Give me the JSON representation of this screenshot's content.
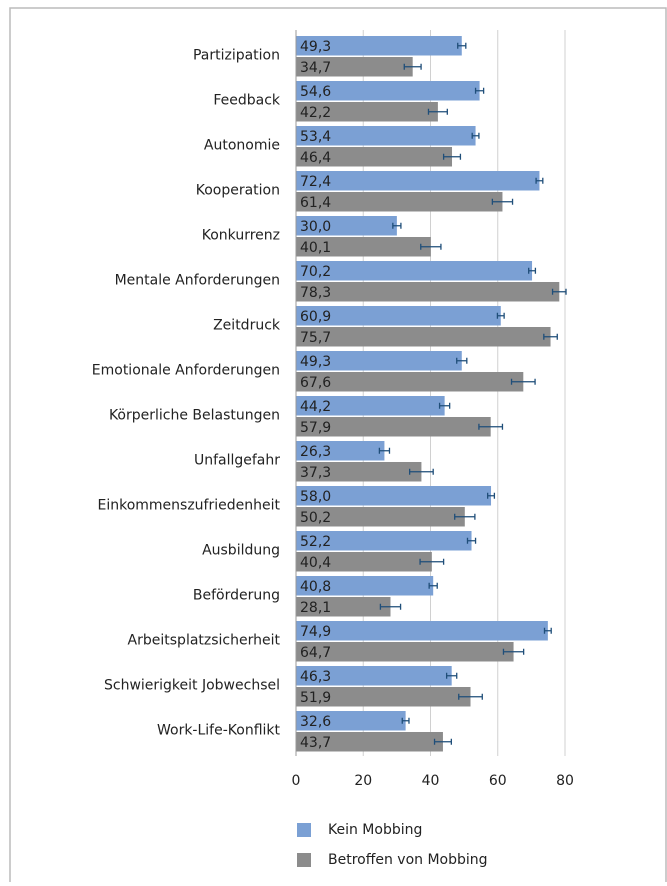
{
  "chart_data": {
    "type": "bar",
    "orientation": "horizontal",
    "categories": [
      "Partizipation",
      "Feedback",
      "Autonomie",
      "Kooperation",
      "Konkurrenz",
      "Mentale Anforderungen",
      "Zeitdruck",
      "Emotionale Anforderungen",
      "Körperliche Belastungen",
      "Unfallgefahr",
      "Einkommenszufriedenheit",
      "Ausbildung",
      "Beförderung",
      "Arbeitsplatzsicherheit",
      "Schwierigkeit Jobwechsel",
      "Work-Life-Konflikt"
    ],
    "series": [
      {
        "name": "Kein Mobbing",
        "color": "#7ba0d4",
        "values": [
          49.3,
          54.6,
          53.4,
          72.4,
          30.0,
          70.2,
          60.9,
          49.3,
          44.2,
          26.3,
          58.0,
          52.2,
          40.8,
          74.9,
          46.3,
          32.6
        ],
        "value_labels": [
          "49,3",
          "54,6",
          "53,4",
          "72,4",
          "30,0",
          "70,2",
          "60,9",
          "49,3",
          "44,2",
          "26,3",
          "58,0",
          "52,2",
          "40,8",
          "74,9",
          "46,3",
          "32,6"
        ],
        "errors": [
          1.2,
          1.2,
          1,
          1,
          1.2,
          1,
          1,
          1.5,
          1.5,
          1.5,
          1,
          1.2,
          1.2,
          1,
          1.5,
          1
        ]
      },
      {
        "name": "Betroffen von Mobbing",
        "color": "#8c8c8c",
        "values": [
          34.7,
          42.2,
          46.4,
          61.4,
          40.1,
          78.3,
          75.7,
          67.6,
          57.9,
          37.3,
          50.2,
          40.4,
          28.1,
          64.7,
          51.9,
          43.7
        ],
        "value_labels": [
          "34,7",
          "42,2",
          "46,4",
          "61,4",
          "40,1",
          "78,3",
          "75,7",
          "67,6",
          "57,9",
          "37,3",
          "50,2",
          "40,4",
          "28,1",
          "64,7",
          "51,9",
          "43,7"
        ],
        "errors": [
          2.5,
          2.8,
          2.5,
          3,
          3,
          2,
          2,
          3.5,
          3.5,
          3.5,
          3,
          3.5,
          3,
          3,
          3.5,
          2.5
        ]
      }
    ],
    "xlim": [
      0,
      80
    ],
    "xticks": [
      0,
      20,
      40,
      60,
      80
    ],
    "grid": true,
    "legend": "bottom"
  }
}
